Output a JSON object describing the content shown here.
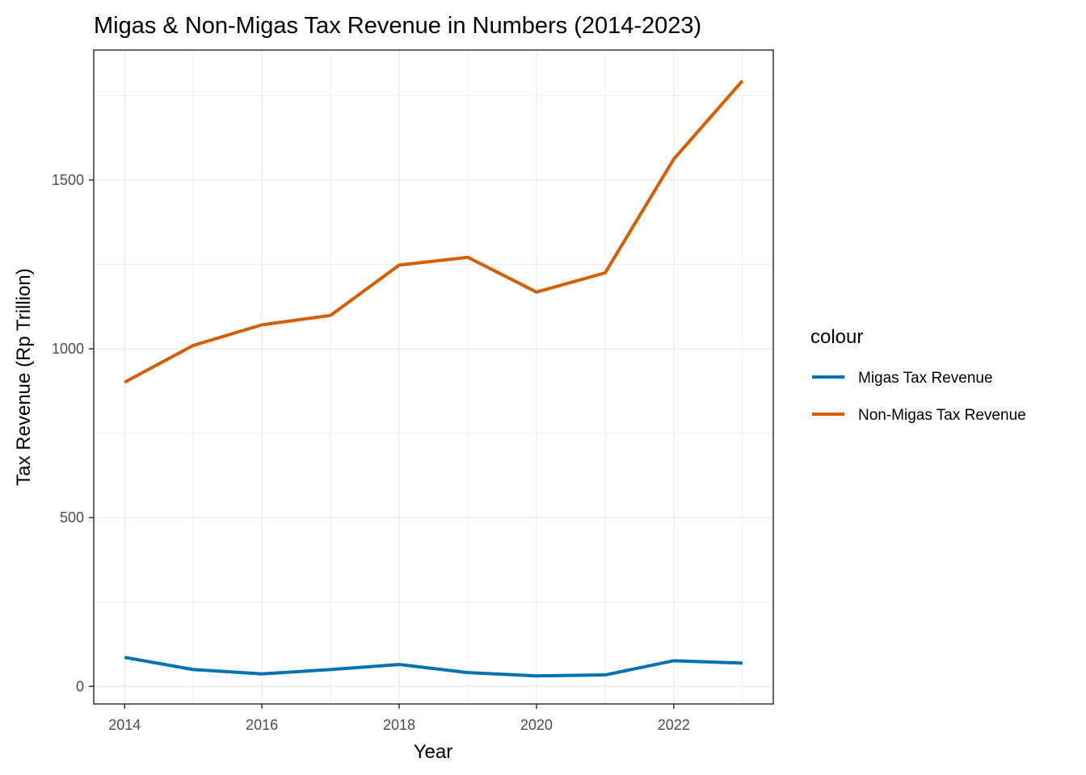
{
  "chart_data": {
    "type": "line",
    "title": "Migas & Non-Migas Tax Revenue in Numbers (2014-2023)",
    "xlabel": "Year",
    "ylabel": "Tax Revenue (Rp Trillion)",
    "x": [
      2014,
      2015,
      2016,
      2017,
      2018,
      2019,
      2020,
      2021,
      2022,
      2023
    ],
    "xticks": [
      2014,
      2016,
      2018,
      2020,
      2022
    ],
    "xtick_labels": [
      "2014",
      "2016",
      "2018",
      "2020",
      "2022"
    ],
    "yticks": [
      0,
      500,
      1000,
      1500
    ],
    "ytick_labels": [
      "0",
      "500",
      "1000",
      "1500"
    ],
    "xlim": [
      2013.55,
      2023.45
    ],
    "ylim": [
      -52,
      1885
    ],
    "grid": true,
    "legend": {
      "title": "colour",
      "position": "right"
    },
    "series": [
      {
        "name": "Migas Tax Revenue",
        "color": "#0072B2",
        "values": [
          86,
          50,
          37,
          50,
          65,
          41,
          31,
          34,
          76,
          69
        ]
      },
      {
        "name": "Non-Migas Tax Revenue",
        "color": "#D55E00",
        "values": [
          901,
          1010,
          1071,
          1099,
          1248,
          1271,
          1168,
          1225,
          1562,
          1794
        ]
      }
    ]
  }
}
